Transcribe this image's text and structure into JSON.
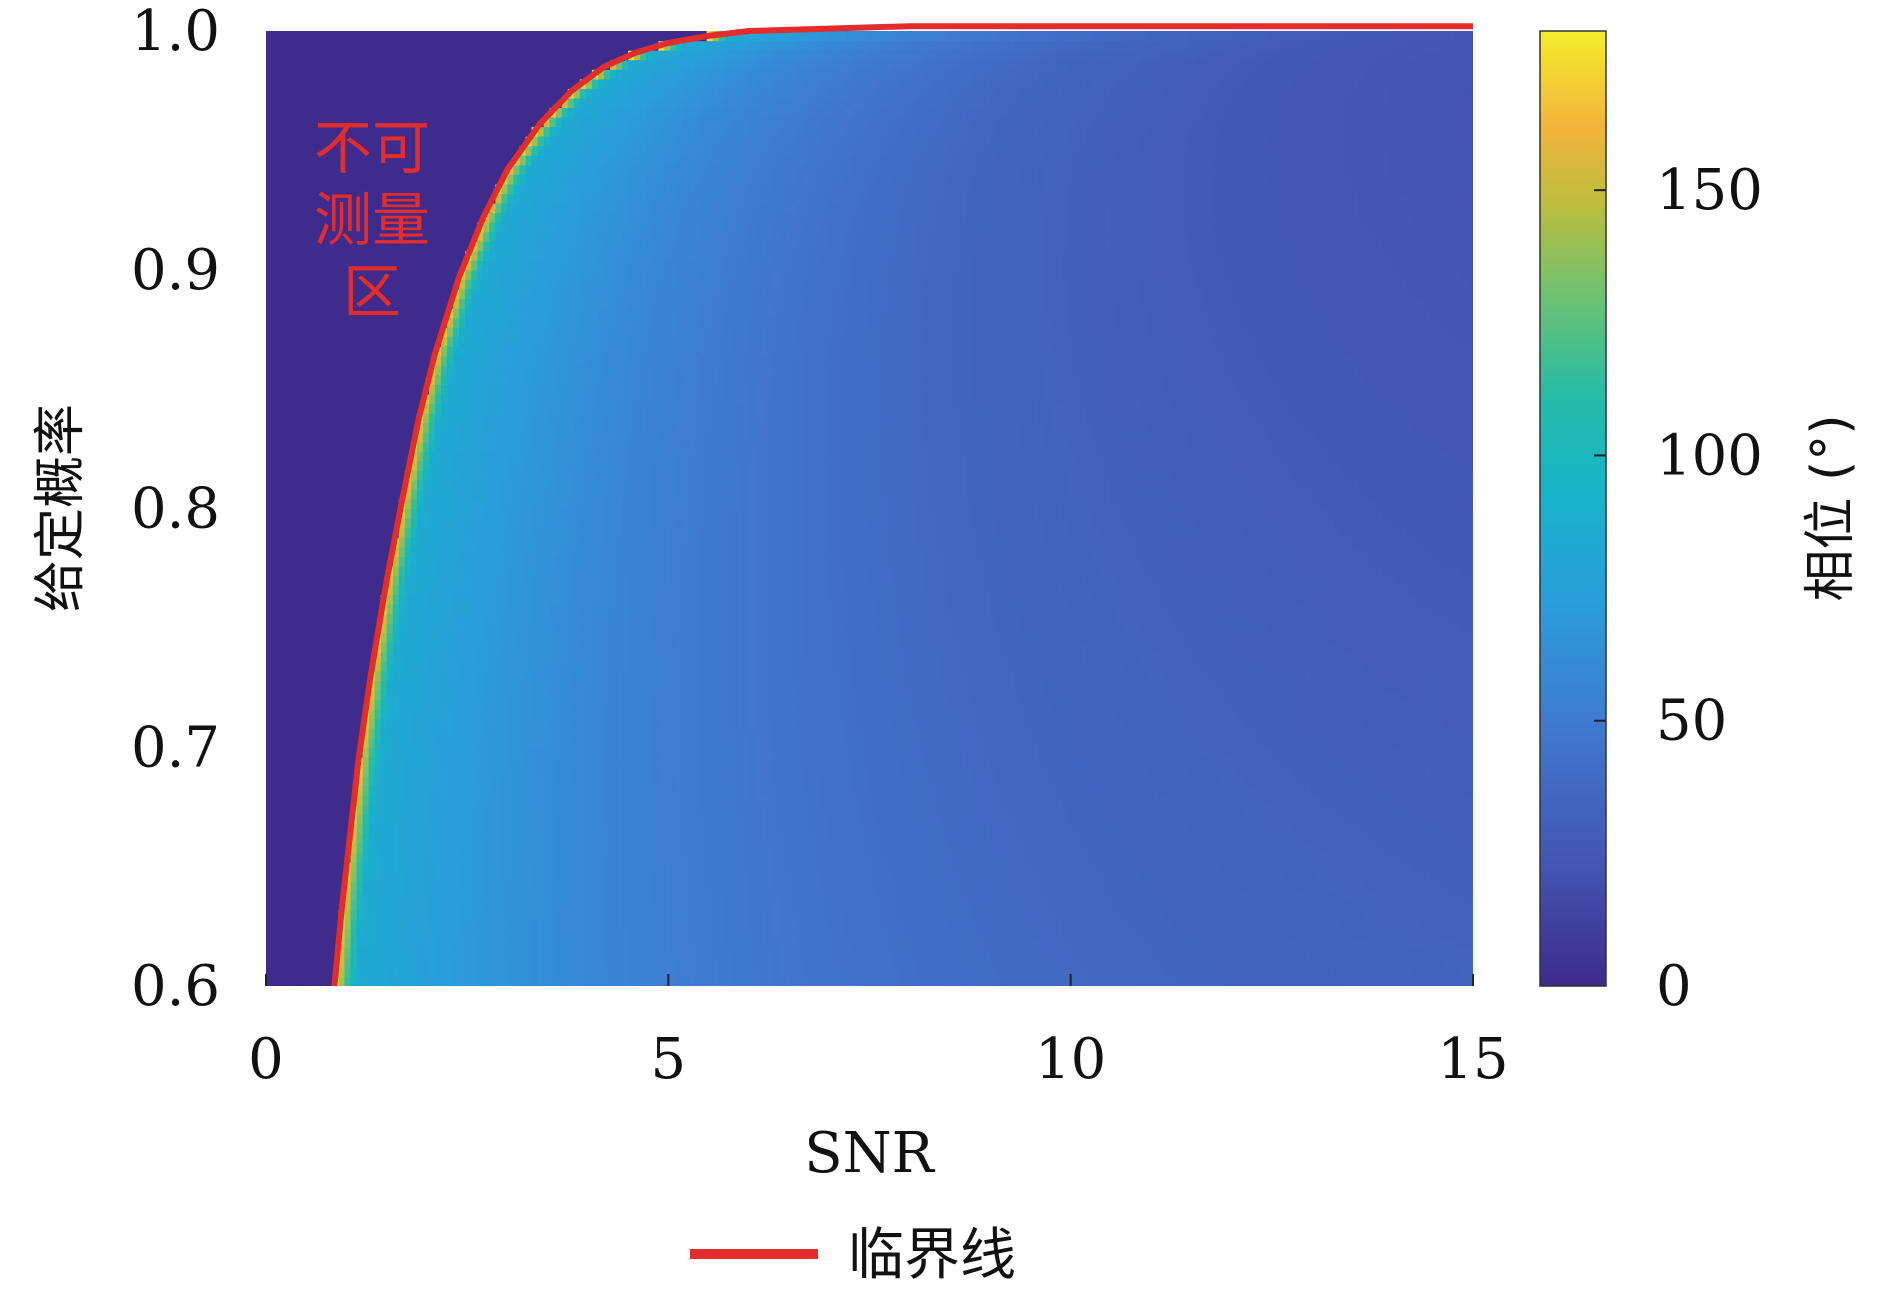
{
  "chart_data": {
    "type": "heatmap",
    "xlabel": "SNR",
    "ylabel": "给定概率",
    "xlim": [
      0,
      15
    ],
    "ylim": [
      0.6,
      1.0
    ],
    "x_ticks": [
      "0",
      "5",
      "10",
      "15"
    ],
    "y_ticks": [
      "0.6",
      "0.7",
      "0.8",
      "0.9",
      "1.0"
    ],
    "colorbar": {
      "label": "相位 (°)",
      "range": [
        0,
        180
      ],
      "ticks": [
        "0",
        "50",
        "100",
        "150"
      ],
      "colormap": "parula"
    },
    "region_annotation": [
      "不可",
      "测量",
      "区"
    ],
    "annotation_color": "#e32c2c",
    "critical_line": {
      "legend_label": "临界线",
      "color": "#e32c2c",
      "snr": [
        0.85,
        0.95,
        1.05,
        1.15,
        1.3,
        1.5,
        1.7,
        1.9,
        2.1,
        2.4,
        2.7,
        3.0,
        3.4,
        3.8,
        4.2,
        4.6,
        5.0,
        5.5,
        6.0,
        7.0,
        8.0,
        10.0,
        15.0
      ],
      "probability": [
        0.6,
        0.635,
        0.665,
        0.695,
        0.73,
        0.77,
        0.805,
        0.838,
        0.865,
        0.897,
        0.922,
        0.942,
        0.961,
        0.975,
        0.985,
        0.991,
        0.995,
        0.998,
        1.0,
        1.001,
        1.002,
        1.002,
        1.002
      ]
    }
  }
}
